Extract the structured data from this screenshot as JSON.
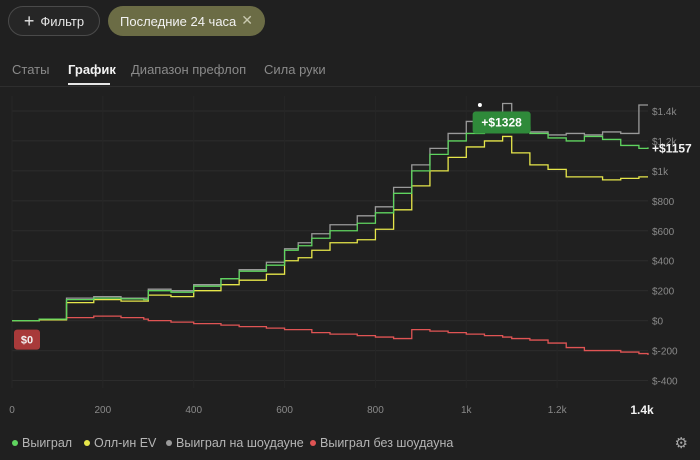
{
  "toolbar": {
    "filter_label": "Фильтр",
    "chip_label": "Последние 24 часа"
  },
  "tabs": [
    {
      "label": "Статы",
      "active": false
    },
    {
      "label": "График",
      "active": true
    },
    {
      "label": "Диапазон префлоп",
      "active": false
    },
    {
      "label": "Сила руки",
      "active": false
    }
  ],
  "legend": [
    {
      "label": "Выиграл",
      "color": "#5fd45f"
    },
    {
      "label": "Олл-ин EV",
      "color": "#e6e64a"
    },
    {
      "label": "Выиграл на шоудауне",
      "color": "#9a9a9a"
    },
    {
      "label": "Выиграл без шоудауна",
      "color": "#e05454"
    }
  ],
  "chart_data": {
    "type": "line",
    "x_ticks": [
      "0",
      "200",
      "400",
      "600",
      "800",
      "1k",
      "1.2k"
    ],
    "x_end_label": "1.4k",
    "y_ticks": [
      "$1.4k",
      "$1.2k",
      "$1k",
      "$800",
      "$600",
      "$400",
      "$200",
      "$0",
      "$-200",
      "$-400"
    ],
    "xlim": [
      0,
      1400
    ],
    "ylim": [
      -450,
      1500
    ],
    "start_label": "$0",
    "peak_label": "+$1328",
    "end_label": "+$1157",
    "series": [
      {
        "name": "Выиграл",
        "color": "#5fd45f",
        "points": [
          [
            0,
            0
          ],
          [
            60,
            10
          ],
          [
            120,
            140
          ],
          [
            180,
            150
          ],
          [
            240,
            145
          ],
          [
            290,
            140
          ],
          [
            300,
            200
          ],
          [
            350,
            190
          ],
          [
            400,
            230
          ],
          [
            460,
            280
          ],
          [
            500,
            330
          ],
          [
            560,
            370
          ],
          [
            600,
            470
          ],
          [
            630,
            500
          ],
          [
            660,
            550
          ],
          [
            700,
            600
          ],
          [
            760,
            650
          ],
          [
            800,
            720
          ],
          [
            840,
            850
          ],
          [
            880,
            1000
          ],
          [
            920,
            1110
          ],
          [
            960,
            1200
          ],
          [
            1000,
            1250
          ],
          [
            1040,
            1300
          ],
          [
            1080,
            1330
          ],
          [
            1100,
            1290
          ],
          [
            1140,
            1250
          ],
          [
            1180,
            1220
          ],
          [
            1220,
            1200
          ],
          [
            1260,
            1230
          ],
          [
            1300,
            1210
          ],
          [
            1340,
            1170
          ],
          [
            1380,
            1150
          ],
          [
            1400,
            1157
          ]
        ]
      },
      {
        "name": "Олл-ин EV",
        "color": "#e6e64a",
        "points": [
          [
            0,
            0
          ],
          [
            60,
            5
          ],
          [
            120,
            120
          ],
          [
            180,
            140
          ],
          [
            240,
            130
          ],
          [
            290,
            130
          ],
          [
            300,
            170
          ],
          [
            350,
            160
          ],
          [
            400,
            200
          ],
          [
            460,
            240
          ],
          [
            500,
            270
          ],
          [
            560,
            310
          ],
          [
            600,
            400
          ],
          [
            630,
            420
          ],
          [
            660,
            470
          ],
          [
            700,
            520
          ],
          [
            760,
            540
          ],
          [
            800,
            610
          ],
          [
            840,
            740
          ],
          [
            880,
            900
          ],
          [
            920,
            1000
          ],
          [
            960,
            1090
          ],
          [
            1000,
            1160
          ],
          [
            1040,
            1200
          ],
          [
            1080,
            1230
          ],
          [
            1100,
            1120
          ],
          [
            1140,
            1040
          ],
          [
            1180,
            1010
          ],
          [
            1220,
            960
          ],
          [
            1260,
            960
          ],
          [
            1300,
            940
          ],
          [
            1340,
            950
          ],
          [
            1380,
            960
          ],
          [
            1400,
            960
          ]
        ]
      },
      {
        "name": "Выиграл на шоудауне",
        "color": "#9a9a9a",
        "points": [
          [
            0,
            0
          ],
          [
            60,
            10
          ],
          [
            120,
            150
          ],
          [
            180,
            160
          ],
          [
            240,
            150
          ],
          [
            290,
            150
          ],
          [
            300,
            210
          ],
          [
            350,
            200
          ],
          [
            400,
            240
          ],
          [
            460,
            280
          ],
          [
            500,
            340
          ],
          [
            560,
            390
          ],
          [
            600,
            480
          ],
          [
            630,
            520
          ],
          [
            660,
            580
          ],
          [
            700,
            640
          ],
          [
            760,
            700
          ],
          [
            800,
            760
          ],
          [
            840,
            890
          ],
          [
            880,
            1040
          ],
          [
            920,
            1150
          ],
          [
            960,
            1250
          ],
          [
            1000,
            1330
          ],
          [
            1040,
            1380
          ],
          [
            1080,
            1450
          ],
          [
            1100,
            1300
          ],
          [
            1140,
            1260
          ],
          [
            1180,
            1240
          ],
          [
            1220,
            1250
          ],
          [
            1260,
            1240
          ],
          [
            1300,
            1260
          ],
          [
            1340,
            1250
          ],
          [
            1380,
            1440
          ],
          [
            1400,
            1440
          ]
        ]
      },
      {
        "name": "Выиграл без шоудауна",
        "color": "#e05454",
        "points": [
          [
            0,
            0
          ],
          [
            60,
            10
          ],
          [
            120,
            20
          ],
          [
            180,
            30
          ],
          [
            240,
            20
          ],
          [
            290,
            10
          ],
          [
            300,
            0
          ],
          [
            350,
            -10
          ],
          [
            400,
            -20
          ],
          [
            460,
            -30
          ],
          [
            500,
            -40
          ],
          [
            560,
            -50
          ],
          [
            600,
            -60
          ],
          [
            630,
            -60
          ],
          [
            660,
            -80
          ],
          [
            700,
            -90
          ],
          [
            760,
            -100
          ],
          [
            800,
            -110
          ],
          [
            840,
            -120
          ],
          [
            880,
            -60
          ],
          [
            920,
            -70
          ],
          [
            960,
            -80
          ],
          [
            1000,
            -90
          ],
          [
            1040,
            -100
          ],
          [
            1080,
            -110
          ],
          [
            1100,
            -120
          ],
          [
            1140,
            -130
          ],
          [
            1180,
            -150
          ],
          [
            1220,
            -180
          ],
          [
            1260,
            -200
          ],
          [
            1300,
            -200
          ],
          [
            1340,
            -210
          ],
          [
            1380,
            -220
          ],
          [
            1400,
            -230
          ]
        ]
      }
    ]
  }
}
